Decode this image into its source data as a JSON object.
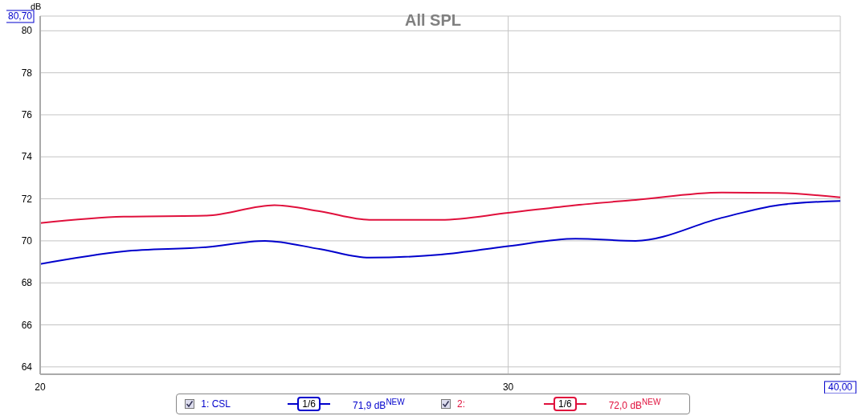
{
  "chart_data": {
    "type": "line",
    "title": "All SPL",
    "ylabel": "dB",
    "x": [
      20,
      21.5,
      23.1,
      24.3,
      25.5,
      26.6,
      28.3,
      30,
      31.8,
      33.5,
      36.1,
      37.9,
      40
    ],
    "series": [
      {
        "name": "1: CSL",
        "color": "#0000cc",
        "values": [
          68.9,
          69.5,
          69.7,
          70.0,
          69.6,
          69.2,
          69.35,
          69.75,
          70.1,
          70.0,
          71.1,
          71.7,
          71.9
        ]
      },
      {
        "name": "2:",
        "color": "#e0103c",
        "x": [
          20,
          21.5,
          23.1,
          24.5,
          25.5,
          26.6,
          28.3,
          30,
          31.8,
          33.5,
          36.1,
          37.9,
          40
        ],
        "values": [
          70.85,
          71.15,
          71.2,
          71.7,
          71.4,
          71.0,
          71.0,
          71.33,
          71.7,
          71.95,
          72.3,
          72.28,
          72.07
        ]
      }
    ],
    "xlim": [
      20,
      40
    ],
    "xticks": [
      20,
      30,
      {
        "value": 40,
        "label": "40,00"
      }
    ],
    "ylim": [
      63.65,
      80.7
    ],
    "yticks": [
      64,
      66,
      68,
      70,
      72,
      74,
      76,
      78,
      80,
      {
        "value": 80.7,
        "label": "80,70"
      }
    ],
    "log": "x",
    "grid": true,
    "legend": "bottom",
    "marker": "none",
    "line_style": "solid",
    "annotations": [
      "1/6",
      "71,9 dB$^{NEW}$",
      "1/6",
      "72,0 dB$^{NEW}$"
    ]
  }
}
